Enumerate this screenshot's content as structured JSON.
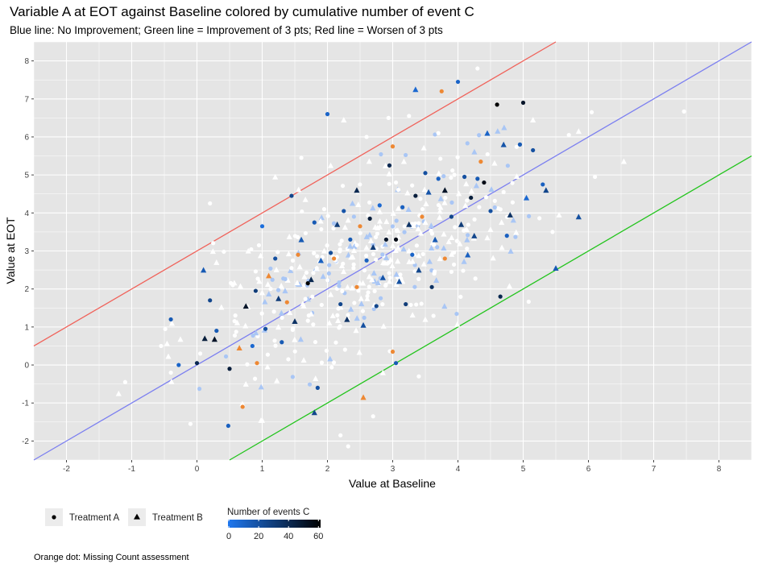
{
  "chart_data": {
    "type": "scatter",
    "title": "Variable A at EOT against Baseline colored by cumulative number of event C",
    "subtitle": "Blue line: No Improvement; Green line = Improvement of 3 pts; Red line = Worsen of 3 pts",
    "xlabel": "Value at Baseline",
    "ylabel": "Value at EOT",
    "xlim": [
      -2.5,
      8.5
    ],
    "ylim": [
      -2.5,
      8.5
    ],
    "xticks": [
      "-2",
      "-1",
      "0",
      "1",
      "2",
      "3",
      "4",
      "5",
      "6",
      "7",
      "8"
    ],
    "yticks": [
      "-2",
      "-1",
      "0",
      "1",
      "2",
      "3",
      "4",
      "5",
      "6",
      "7",
      "8"
    ],
    "grid": true,
    "background": "#e5e5e5",
    "reference_lines": [
      {
        "intercept": 3,
        "slope": 1,
        "color": "#f0625a"
      },
      {
        "intercept": 0,
        "slope": 1,
        "color": "#7b7ff0"
      },
      {
        "intercept": -3,
        "slope": 1,
        "color": "#22c41c"
      }
    ],
    "shape_legend": {
      "items": [
        {
          "label": "Treatment A",
          "shape": "circle"
        },
        {
          "label": "Treatment B",
          "shape": "triangle"
        }
      ]
    },
    "color_legend": {
      "title": "Number of events C",
      "ticks": [
        "0",
        "20",
        "40",
        "60"
      ],
      "range": [
        0,
        60
      ],
      "gradient": [
        "#1f78f0",
        "#000000"
      ]
    },
    "missing_color": "#ee8833",
    "caption": "Orange dot: Missing Count assessment",
    "points": [
      {
        "x": -0.4,
        "y": 1.2,
        "shape": "circle",
        "count": 15
      },
      {
        "x": -0.28,
        "y": 0.0,
        "shape": "circle",
        "count": 10
      },
      {
        "x": 0.0,
        "y": 0.05,
        "shape": "circle",
        "count": 40
      },
      {
        "x": 0.1,
        "y": 2.5,
        "shape": "triangle",
        "count": 15
      },
      {
        "x": 0.12,
        "y": 0.7,
        "shape": "triangle",
        "count": 45
      },
      {
        "x": 0.27,
        "y": 0.68,
        "shape": "triangle",
        "count": 50
      },
      {
        "x": 0.2,
        "y": 1.7,
        "shape": "circle",
        "count": 25
      },
      {
        "x": 0.3,
        "y": 0.9,
        "shape": "circle",
        "count": 15
      },
      {
        "x": 0.5,
        "y": -0.1,
        "shape": "circle",
        "count": 45
      },
      {
        "x": 0.48,
        "y": -1.6,
        "shape": "circle",
        "count": 12
      },
      {
        "x": 0.65,
        "y": 0.45,
        "shape": "triangle",
        "count": null
      },
      {
        "x": 0.7,
        "y": -1.1,
        "shape": "circle",
        "count": null
      },
      {
        "x": 0.75,
        "y": 1.55,
        "shape": "triangle",
        "count": 50
      },
      {
        "x": 0.85,
        "y": 0.5,
        "shape": "circle",
        "count": 8
      },
      {
        "x": 0.9,
        "y": 1.95,
        "shape": "circle",
        "count": 30
      },
      {
        "x": 0.92,
        "y": 0.05,
        "shape": "circle",
        "count": null
      },
      {
        "x": 1.0,
        "y": 3.65,
        "shape": "circle",
        "count": 5
      },
      {
        "x": 1.05,
        "y": 0.95,
        "shape": "circle",
        "count": 20
      },
      {
        "x": 1.1,
        "y": 2.35,
        "shape": "triangle",
        "count": null
      },
      {
        "x": 1.2,
        "y": 2.8,
        "shape": "circle",
        "count": 20
      },
      {
        "x": 1.25,
        "y": 1.75,
        "shape": "triangle",
        "count": 30
      },
      {
        "x": 1.3,
        "y": 0.6,
        "shape": "circle",
        "count": 15
      },
      {
        "x": 1.38,
        "y": 1.65,
        "shape": "circle",
        "count": null
      },
      {
        "x": 1.45,
        "y": 4.45,
        "shape": "circle",
        "count": 25
      },
      {
        "x": 1.5,
        "y": 1.15,
        "shape": "triangle",
        "count": 35
      },
      {
        "x": 1.55,
        "y": 2.9,
        "shape": "circle",
        "count": null
      },
      {
        "x": 1.6,
        "y": 3.3,
        "shape": "triangle",
        "count": 15
      },
      {
        "x": 1.7,
        "y": 2.15,
        "shape": "circle",
        "count": 60
      },
      {
        "x": 1.75,
        "y": 2.25,
        "shape": "triangle",
        "count": 40
      },
      {
        "x": 1.8,
        "y": -1.25,
        "shape": "triangle",
        "count": 25
      },
      {
        "x": 1.8,
        "y": 3.75,
        "shape": "circle",
        "count": 15
      },
      {
        "x": 1.85,
        "y": -0.6,
        "shape": "circle",
        "count": 20
      },
      {
        "x": 1.9,
        "y": 2.75,
        "shape": "triangle",
        "count": 12
      },
      {
        "x": 2.0,
        "y": 6.6,
        "shape": "circle",
        "count": 10
      },
      {
        "x": 2.05,
        "y": 2.95,
        "shape": "circle",
        "count": 22
      },
      {
        "x": 2.1,
        "y": 2.8,
        "shape": "circle",
        "count": null
      },
      {
        "x": 2.15,
        "y": 3.7,
        "shape": "triangle",
        "count": 30
      },
      {
        "x": 2.2,
        "y": 1.6,
        "shape": "circle",
        "count": 25
      },
      {
        "x": 2.25,
        "y": 4.05,
        "shape": "circle",
        "count": 18
      },
      {
        "x": 2.3,
        "y": 1.2,
        "shape": "triangle",
        "count": 35
      },
      {
        "x": 2.35,
        "y": 3.3,
        "shape": "circle",
        "count": 15
      },
      {
        "x": 2.45,
        "y": 2.05,
        "shape": "circle",
        "count": null
      },
      {
        "x": 2.45,
        "y": 4.6,
        "shape": "triangle",
        "count": 40
      },
      {
        "x": 2.5,
        "y": 3.65,
        "shape": "circle",
        "count": null
      },
      {
        "x": 2.55,
        "y": 1.05,
        "shape": "triangle",
        "count": 20
      },
      {
        "x": 2.55,
        "y": -0.85,
        "shape": "triangle",
        "count": null
      },
      {
        "x": 2.6,
        "y": 2.75,
        "shape": "circle",
        "count": 12
      },
      {
        "x": 2.65,
        "y": 3.85,
        "shape": "circle",
        "count": 45
      },
      {
        "x": 2.7,
        "y": 3.1,
        "shape": "triangle",
        "count": 30
      },
      {
        "x": 2.75,
        "y": 1.55,
        "shape": "circle",
        "count": 25
      },
      {
        "x": 2.8,
        "y": 4.2,
        "shape": "circle",
        "count": 8
      },
      {
        "x": 2.85,
        "y": 2.3,
        "shape": "triangle",
        "count": 18
      },
      {
        "x": 2.9,
        "y": 3.3,
        "shape": "circle",
        "count": 50
      },
      {
        "x": 2.95,
        "y": 5.25,
        "shape": "circle",
        "count": 40
      },
      {
        "x": 3.0,
        "y": 5.75,
        "shape": "circle",
        "count": null
      },
      {
        "x": 3.0,
        "y": 0.35,
        "shape": "circle",
        "count": null
      },
      {
        "x": 3.05,
        "y": 3.3,
        "shape": "circle",
        "count": 55
      },
      {
        "x": 3.05,
        "y": 0.05,
        "shape": "circle",
        "count": 15
      },
      {
        "x": 3.1,
        "y": 2.2,
        "shape": "triangle",
        "count": 20
      },
      {
        "x": 3.15,
        "y": 4.15,
        "shape": "circle",
        "count": 12
      },
      {
        "x": 3.2,
        "y": 1.6,
        "shape": "circle",
        "count": 30
      },
      {
        "x": 3.25,
        "y": 3.7,
        "shape": "triangle",
        "count": 35
      },
      {
        "x": 3.3,
        "y": 2.9,
        "shape": "circle",
        "count": 10
      },
      {
        "x": 3.35,
        "y": 7.25,
        "shape": "triangle",
        "count": 8
      },
      {
        "x": 3.35,
        "y": 4.45,
        "shape": "circle",
        "count": 45
      },
      {
        "x": 3.4,
        "y": 2.5,
        "shape": "triangle",
        "count": 25
      },
      {
        "x": 3.45,
        "y": 3.9,
        "shape": "circle",
        "count": null
      },
      {
        "x": 3.5,
        "y": 5.05,
        "shape": "circle",
        "count": 20
      },
      {
        "x": 3.55,
        "y": 4.55,
        "shape": "triangle",
        "count": 18
      },
      {
        "x": 3.6,
        "y": 2.05,
        "shape": "circle",
        "count": 35
      },
      {
        "x": 3.65,
        "y": 3.3,
        "shape": "triangle",
        "count": 15
      },
      {
        "x": 3.7,
        "y": 4.9,
        "shape": "circle",
        "count": 12
      },
      {
        "x": 3.75,
        "y": 7.2,
        "shape": "circle",
        "count": null
      },
      {
        "x": 3.8,
        "y": 2.8,
        "shape": "circle",
        "count": null
      },
      {
        "x": 3.8,
        "y": 4.6,
        "shape": "triangle",
        "count": 50
      },
      {
        "x": 3.9,
        "y": 3.9,
        "shape": "circle",
        "count": 25
      },
      {
        "x": 4.0,
        "y": 7.45,
        "shape": "circle",
        "count": 10
      },
      {
        "x": 4.05,
        "y": 3.7,
        "shape": "triangle",
        "count": 30
      },
      {
        "x": 4.1,
        "y": 4.95,
        "shape": "circle",
        "count": 20
      },
      {
        "x": 4.15,
        "y": 2.9,
        "shape": "triangle",
        "count": 12
      },
      {
        "x": 4.2,
        "y": 4.4,
        "shape": "circle",
        "count": 45
      },
      {
        "x": 4.25,
        "y": 3.4,
        "shape": "triangle",
        "count": 25
      },
      {
        "x": 4.3,
        "y": 4.9,
        "shape": "circle",
        "count": 15
      },
      {
        "x": 4.35,
        "y": 5.35,
        "shape": "circle",
        "count": null
      },
      {
        "x": 4.4,
        "y": 4.8,
        "shape": "circle",
        "count": 55
      },
      {
        "x": 4.45,
        "y": 6.1,
        "shape": "triangle",
        "count": 10
      },
      {
        "x": 4.5,
        "y": 4.05,
        "shape": "circle",
        "count": 20
      },
      {
        "x": 4.6,
        "y": 6.85,
        "shape": "circle",
        "count": 60
      },
      {
        "x": 4.65,
        "y": 1.8,
        "shape": "circle",
        "count": 40
      },
      {
        "x": 4.7,
        "y": 5.8,
        "shape": "triangle",
        "count": 18
      },
      {
        "x": 4.75,
        "y": 3.4,
        "shape": "circle",
        "count": 12
      },
      {
        "x": 4.8,
        "y": 3.95,
        "shape": "triangle",
        "count": 35
      },
      {
        "x": 4.95,
        "y": 5.8,
        "shape": "circle",
        "count": 15
      },
      {
        "x": 5.0,
        "y": 6.9,
        "shape": "circle",
        "count": 50
      },
      {
        "x": 5.05,
        "y": 4.4,
        "shape": "triangle",
        "count": 8
      },
      {
        "x": 5.15,
        "y": 5.65,
        "shape": "circle",
        "count": 20
      },
      {
        "x": 5.3,
        "y": 4.75,
        "shape": "circle",
        "count": 12
      },
      {
        "x": 5.35,
        "y": 4.6,
        "shape": "triangle",
        "count": 25
      },
      {
        "x": 5.5,
        "y": 2.55,
        "shape": "triangle",
        "count": 15
      },
      {
        "x": 5.85,
        "y": 3.9,
        "shape": "triangle",
        "count": 20
      },
      {
        "x": -1.1,
        "y": -0.45,
        "shape": "circle",
        "count": 0
      },
      {
        "x": -1.2,
        "y": -0.75,
        "shape": "triangle",
        "count": 0
      },
      {
        "x": -0.55,
        "y": 0.5,
        "shape": "circle",
        "count": 0
      },
      {
        "x": -0.1,
        "y": -1.55,
        "shape": "circle",
        "count": 0
      },
      {
        "x": 0.2,
        "y": 4.25,
        "shape": "circle",
        "count": 0
      },
      {
        "x": 0.3,
        "y": 2.7,
        "shape": "triangle",
        "count": 0
      },
      {
        "x": 0.55,
        "y": 2.1,
        "shape": "circle",
        "count": 0
      },
      {
        "x": 0.75,
        "y": -0.5,
        "shape": "triangle",
        "count": 0
      },
      {
        "x": 0.95,
        "y": 3.15,
        "shape": "circle",
        "count": 0
      },
      {
        "x": 1.2,
        "y": 4.95,
        "shape": "triangle",
        "count": 0
      },
      {
        "x": 1.4,
        "y": 0.15,
        "shape": "circle",
        "count": 0
      },
      {
        "x": 1.6,
        "y": 5.45,
        "shape": "circle",
        "count": 0
      },
      {
        "x": 1.75,
        "y": 1.35,
        "shape": "triangle",
        "count": 0
      },
      {
        "x": 1.95,
        "y": 4.1,
        "shape": "circle",
        "count": 0
      },
      {
        "x": 2.2,
        "y": -1.85,
        "shape": "circle",
        "count": 0
      },
      {
        "x": 2.25,
        "y": 6.45,
        "shape": "triangle",
        "count": 0
      },
      {
        "x": 2.4,
        "y": 2.55,
        "shape": "circle",
        "count": 0
      },
      {
        "x": 2.6,
        "y": 6.0,
        "shape": "circle",
        "count": 0
      },
      {
        "x": 2.85,
        "y": -0.2,
        "shape": "triangle",
        "count": 0
      },
      {
        "x": 3.05,
        "y": 4.8,
        "shape": "circle",
        "count": 0
      },
      {
        "x": 3.25,
        "y": 6.55,
        "shape": "circle",
        "count": 0
      },
      {
        "x": 3.5,
        "y": 1.2,
        "shape": "triangle",
        "count": 0
      },
      {
        "x": 3.7,
        "y": 6.1,
        "shape": "circle",
        "count": 0
      },
      {
        "x": 3.9,
        "y": 2.45,
        "shape": "circle",
        "count": 0
      },
      {
        "x": 4.3,
        "y": 7.8,
        "shape": "circle",
        "count": 0
      },
      {
        "x": 4.45,
        "y": 3.35,
        "shape": "triangle",
        "count": 0
      },
      {
        "x": 4.7,
        "y": 4.55,
        "shape": "circle",
        "count": 0
      },
      {
        "x": 5.15,
        "y": 6.45,
        "shape": "triangle",
        "count": 0
      },
      {
        "x": 5.45,
        "y": 3.5,
        "shape": "circle",
        "count": 0
      },
      {
        "x": 5.7,
        "y": 6.05,
        "shape": "circle",
        "count": 0
      },
      {
        "x": 5.55,
        "y": 3.95,
        "shape": "triangle",
        "count": 0
      },
      {
        "x": 6.05,
        "y": 6.65,
        "shape": "circle",
        "count": 0
      },
      {
        "x": 6.1,
        "y": 4.95,
        "shape": "circle",
        "count": 0
      },
      {
        "x": 5.85,
        "y": 6.15,
        "shape": "triangle",
        "count": 0
      },
      {
        "x": 3.4,
        "y": -0.3,
        "shape": "circle",
        "count": 0
      },
      {
        "x": 2.7,
        "y": -1.35,
        "shape": "circle",
        "count": 0
      },
      {
        "x": 1.0,
        "y": -1.45,
        "shape": "triangle",
        "count": 0
      },
      {
        "x": 0.05,
        "y": 0.3,
        "shape": "circle",
        "count": 0
      },
      {
        "x": 1.45,
        "y": 2.55,
        "shape": "circle",
        "count": 0
      },
      {
        "x": 2.05,
        "y": 5.25,
        "shape": "triangle",
        "count": 0
      }
    ],
    "white_cloud_seed": 7,
    "white_cloud_count": 420
  }
}
